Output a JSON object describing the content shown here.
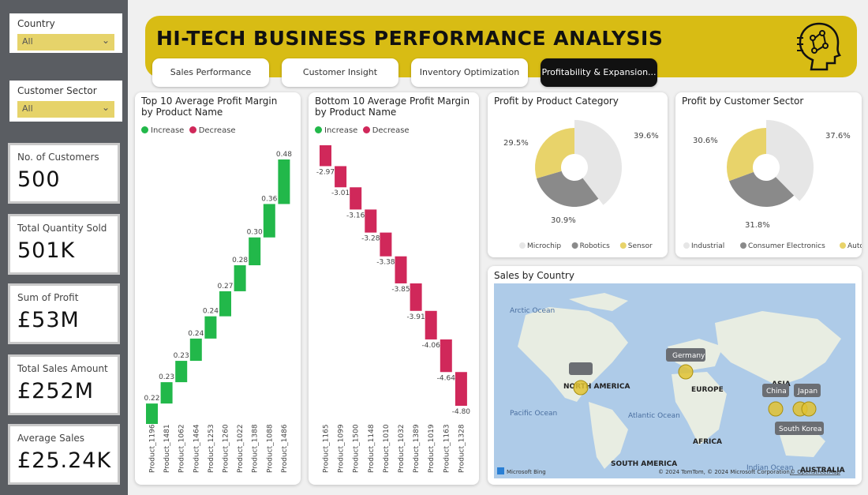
{
  "slicers": [
    {
      "label": "Country",
      "value": "All"
    },
    {
      "label": "Customer Sector",
      "value": "All"
    }
  ],
  "kpis": [
    {
      "title": "No. of Customers",
      "value": "500"
    },
    {
      "title": "Total Quantity Sold",
      "value": "501K"
    },
    {
      "title": "Sum of Profit",
      "value": "£53M"
    },
    {
      "title": "Total Sales Amount",
      "value": "£252M"
    },
    {
      "title": "Average Sales",
      "value": "£25.24K"
    }
  ],
  "header": {
    "title": "HI-TECH BUSINESS PERFORMANCE ANALYSIS",
    "icon": "ai-brain-icon"
  },
  "tabs": [
    {
      "label": "Sales Performance",
      "active": false
    },
    {
      "label": "Customer Insight",
      "active": false
    },
    {
      "label": "Inventory Optimization",
      "active": false
    },
    {
      "label": "Profitability & Expansion...",
      "active": true
    }
  ],
  "colors": {
    "increase": "#22b84a",
    "decrease": "#d0285a",
    "accent": "#d8bc14",
    "pie_light": "#e6e6e6",
    "pie_dark": "#8a8a8a",
    "pie_yellow": "#e8d36a"
  },
  "chart_data": [
    {
      "type": "bar",
      "title": "Top 10 Average Profit Margin by Product Name",
      "legend": [
        "Increase",
        "Decrease"
      ],
      "categories": [
        "Product_1196",
        "Product_1481",
        "Product_1062",
        "Product_1464",
        "Product_1253",
        "Product_1260",
        "Product_1022",
        "Product_1388",
        "Product_1088",
        "Product_1486"
      ],
      "values": [
        0.22,
        0.23,
        0.23,
        0.24,
        0.24,
        0.27,
        0.28,
        0.3,
        0.36,
        0.48
      ],
      "labels": [
        "0.22",
        "0.23",
        "0.23",
        "0.24",
        "0.24",
        "0.27",
        "0.28",
        "0.30",
        "0.36",
        "0.48"
      ]
    },
    {
      "type": "bar",
      "title": "Bottom 10 Average Profit Margin by Product Name",
      "legend": [
        "Increase",
        "Decrease"
      ],
      "categories": [
        "Product_1165",
        "Product_1099",
        "Product_1500",
        "Product_1148",
        "Product_1010",
        "Product_1032",
        "Product_1389",
        "Product_1019",
        "Product_1163",
        "Product_1328"
      ],
      "values": [
        -2.97,
        -3.01,
        -3.16,
        -3.28,
        -3.38,
        -3.85,
        -3.91,
        -4.06,
        -4.64,
        -4.8
      ],
      "labels": [
        "-2.97",
        "-3.01",
        "-3.16",
        "-3.28",
        "-3.38",
        "-3.85",
        "-3.91",
        "-4.06",
        "-4.64",
        "-4.80"
      ]
    },
    {
      "type": "pie",
      "title": "Profit by Product Category",
      "slices": [
        {
          "name": "Microchip",
          "value": 39.6,
          "label": "39.6%"
        },
        {
          "name": "Robotics",
          "value": 30.9,
          "label": "30.9%"
        },
        {
          "name": "Sensor",
          "value": 29.5,
          "label": "29.5%"
        }
      ]
    },
    {
      "type": "pie",
      "title": "Profit by Customer Sector",
      "slices": [
        {
          "name": "Industrial",
          "value": 37.6,
          "label": "37.6%"
        },
        {
          "name": "Consumer Electronics",
          "value": 31.8,
          "label": "31.8%"
        },
        {
          "name": "Automotive",
          "value": 30.6,
          "label": "30.6%"
        }
      ]
    }
  ],
  "map": {
    "title": "Sales by Country",
    "regions": [
      "Arctic Ocean",
      "NORTH AMERICA",
      "EUROPE",
      "ASIA",
      "Pacific Ocean",
      "Atlantic Ocean",
      "AFRICA",
      "SOUTH AMERICA",
      "Indian Ocean",
      "AUSTRALIA"
    ],
    "countries": [
      "Germany",
      "China",
      "Japan",
      "South Korea"
    ],
    "provider": "Microsoft Bing",
    "copyright": "© 2024 TomTom, © 2024 Microsoft Corporation,",
    "copyright_link": "© OpenStreetMap"
  }
}
